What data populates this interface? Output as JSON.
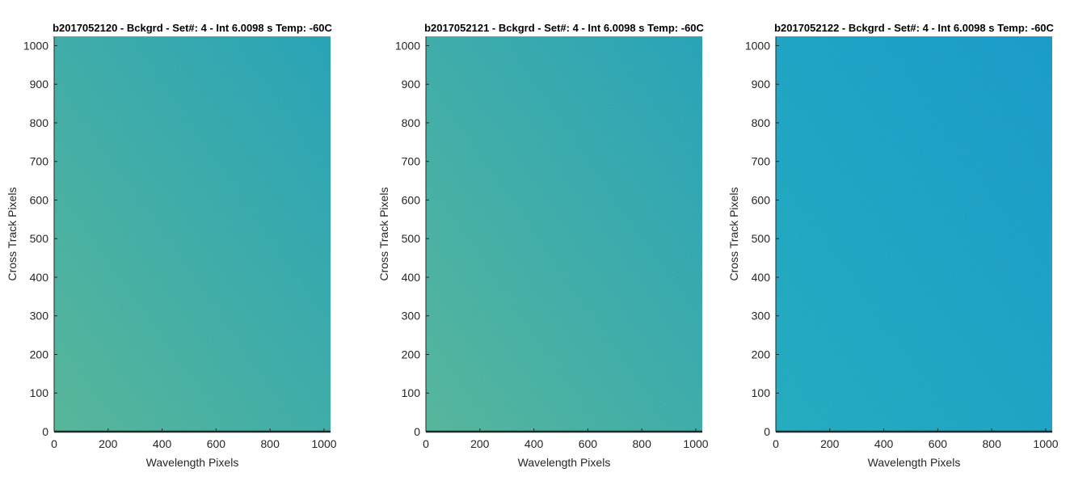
{
  "chart_data": [
    {
      "type": "heatmap",
      "title": "b2017052120 - Bckgrd - Set#: 4 - Int 6.0098 s Temp: -60C",
      "xlabel": "Wavelength Pixels",
      "ylabel": "Cross Track Pixels",
      "xlim": [
        0,
        1024
      ],
      "ylim": [
        0,
        1024
      ],
      "xticks": [
        0,
        200,
        400,
        600,
        800,
        1000
      ],
      "yticks": [
        0,
        100,
        200,
        300,
        400,
        500,
        600,
        700,
        800,
        900,
        1000
      ],
      "colormap": "parula",
      "color_left": "#4fb39a",
      "color_right": "#1e9fb9"
    },
    {
      "type": "heatmap",
      "title": "b2017052121 - Bckgrd - Set#: 4 - Int 6.0098 s Temp: -60C",
      "xlabel": "Wavelength Pixels",
      "ylabel": "Cross Track Pixels",
      "xlim": [
        0,
        1024
      ],
      "ylim": [
        0,
        1024
      ],
      "xticks": [
        0,
        200,
        400,
        600,
        800,
        1000
      ],
      "yticks": [
        0,
        100,
        200,
        300,
        400,
        500,
        600,
        700,
        800,
        900,
        1000
      ],
      "colormap": "parula",
      "color_left": "#4eb39c",
      "color_right": "#1e9fba"
    },
    {
      "type": "heatmap",
      "title": "b2017052122 - Bckgrd - Set#: 4 - Int 6.0098 s Temp: -60C",
      "xlabel": "Wavelength Pixels",
      "ylabel": "Cross Track Pixels",
      "xlim": [
        0,
        1024
      ],
      "ylim": [
        0,
        1024
      ],
      "xticks": [
        0,
        200,
        400,
        600,
        800,
        1000
      ],
      "yticks": [
        0,
        100,
        200,
        300,
        400,
        500,
        600,
        700,
        800,
        900,
        1000
      ],
      "colormap": "parula",
      "color_left": "#1aa8c2",
      "color_right": "#0f97cc"
    }
  ]
}
